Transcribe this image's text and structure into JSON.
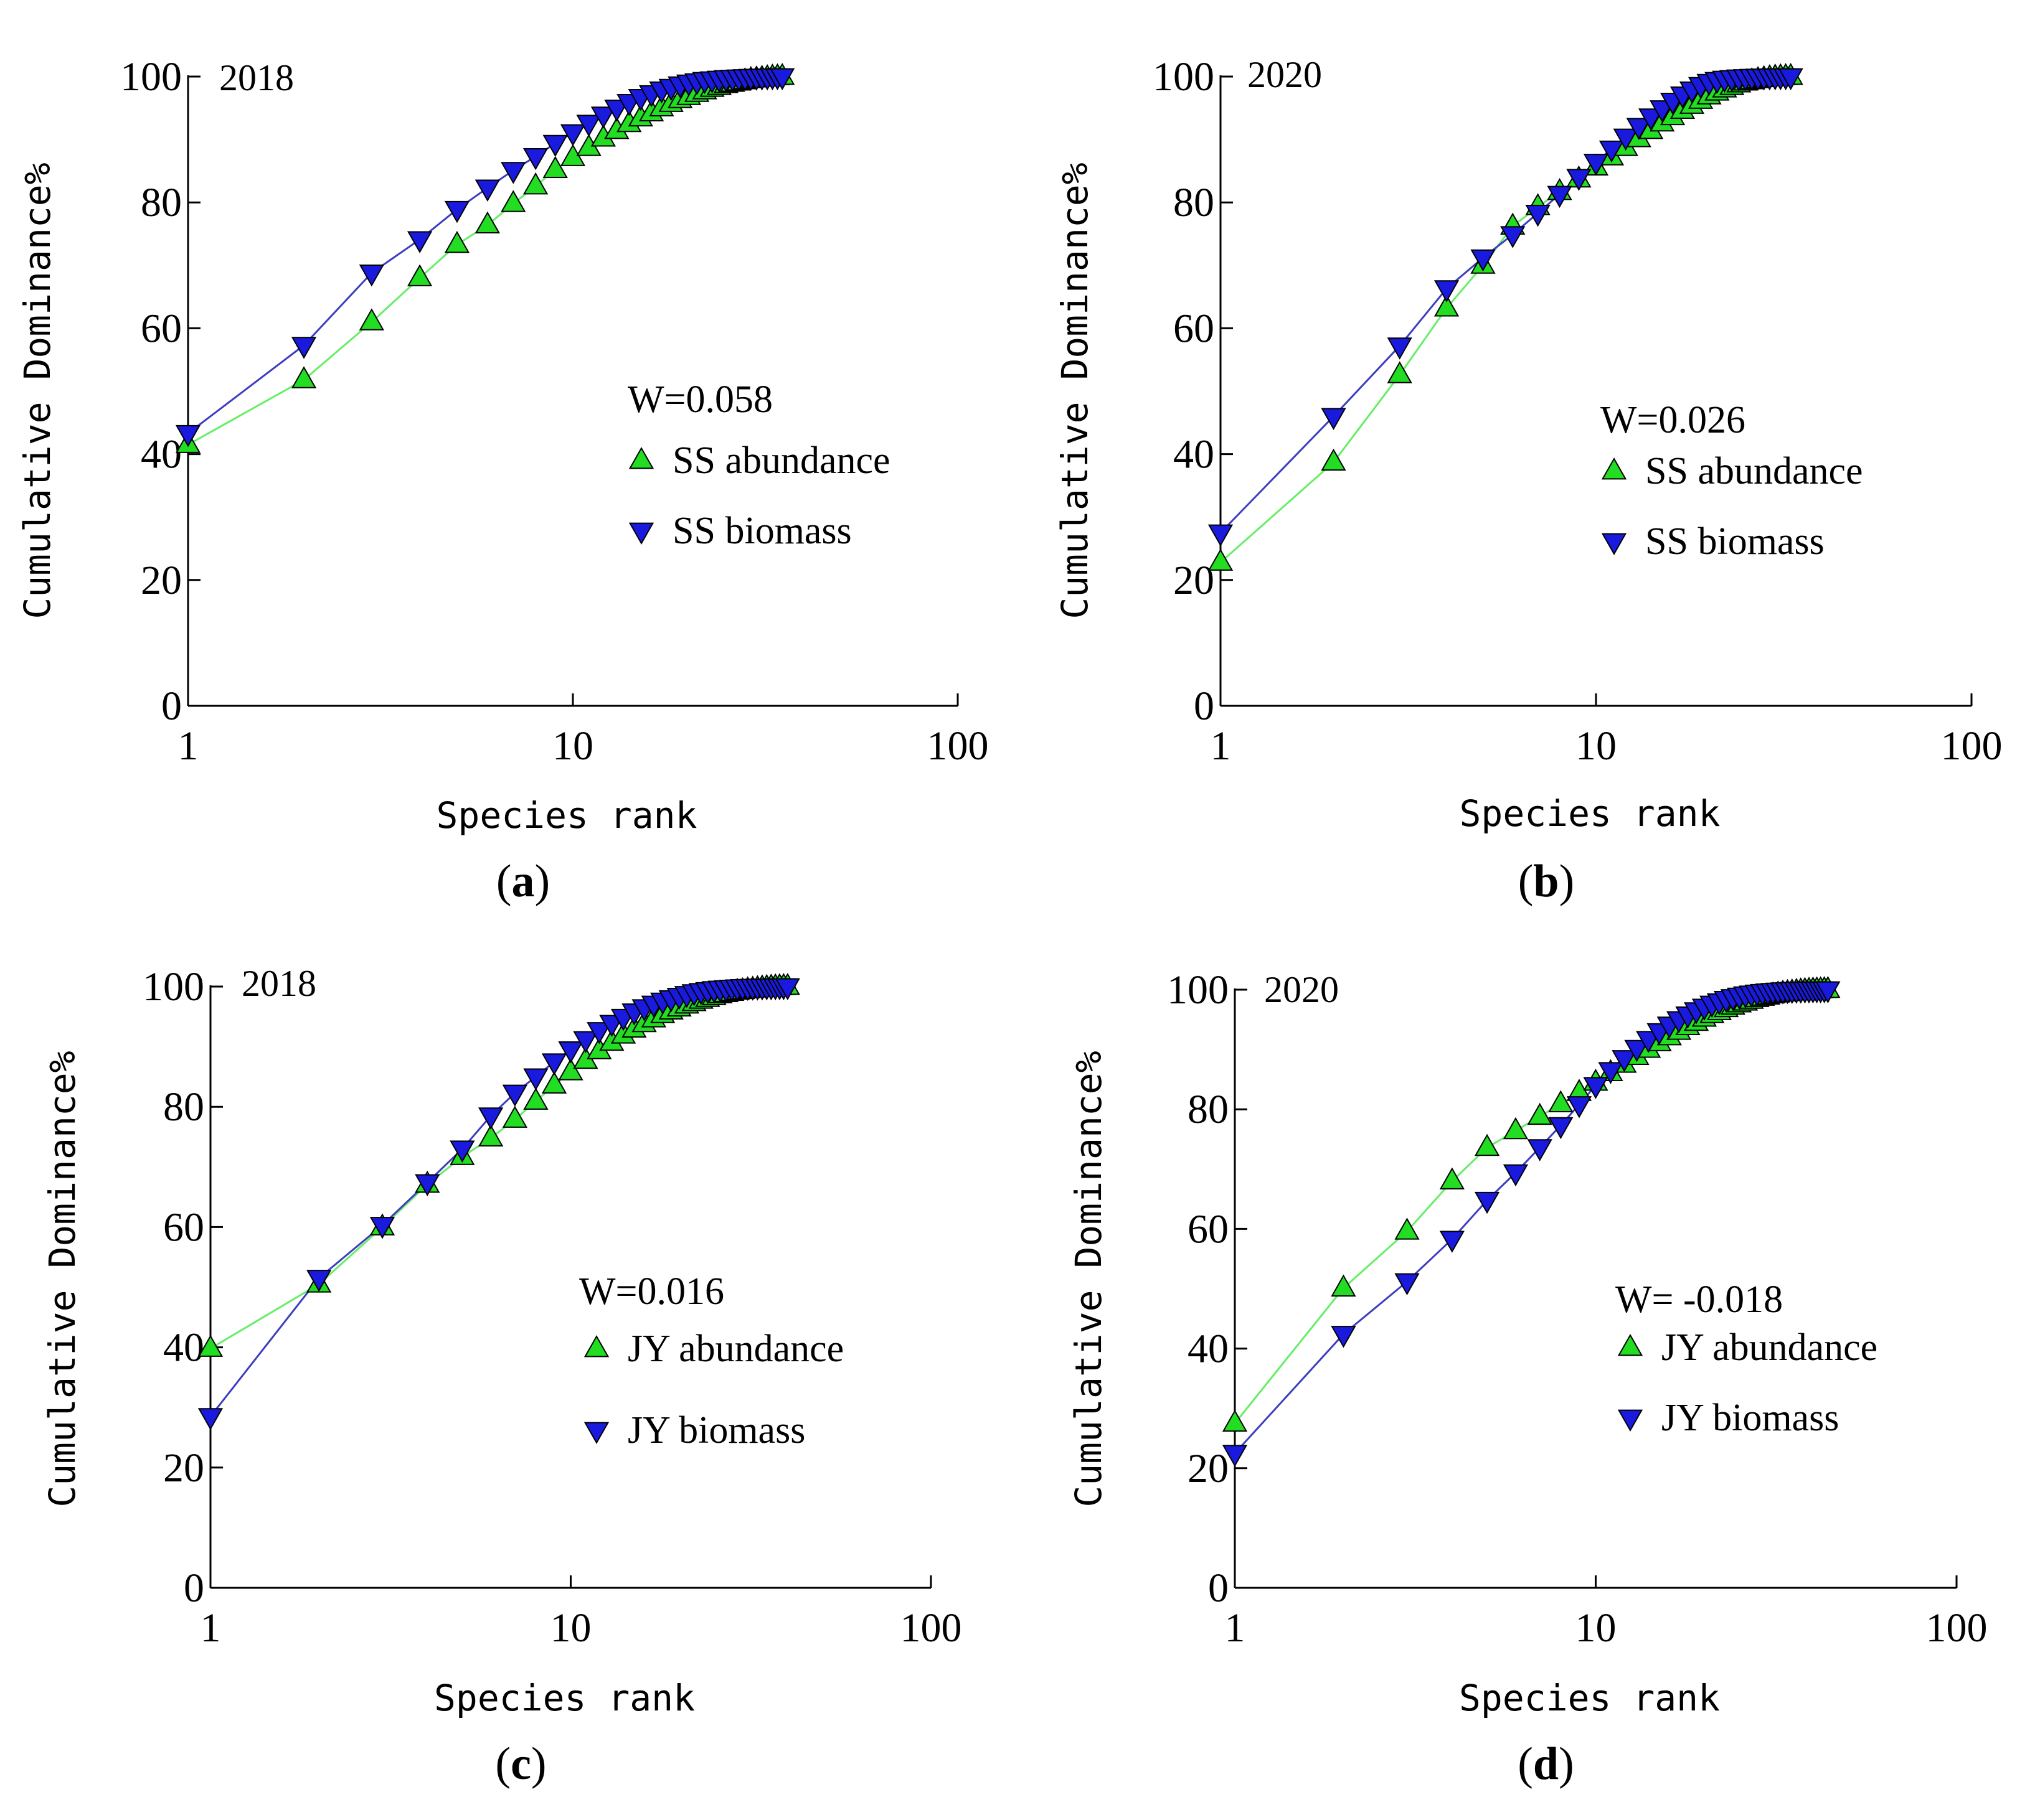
{
  "colors": {
    "abundance_fill": "#22dd22",
    "abundance_line": "#66ee66",
    "biomass_fill": "#1a1adf",
    "biomass_line": "#3d3dc0",
    "axis": "#000000"
  },
  "chart_data": [
    {
      "id": "a",
      "type": "line",
      "caption_letter": "a",
      "year": "2018",
      "annotation": "W=0.058",
      "xlabel": "Species rank",
      "ylabel": "Cumulative Dominance%",
      "xscale": "log",
      "xlim": [
        1,
        100
      ],
      "ylim": [
        0,
        100
      ],
      "x_ticks": [
        "1",
        "10",
        "100"
      ],
      "y_ticks": [
        "0",
        "20",
        "40",
        "60",
        "80",
        "100"
      ],
      "legend_position": "center-right",
      "series": [
        {
          "name": "SS abundance",
          "marker": "triangle-up",
          "x": [
            1,
            2,
            3,
            4,
            5,
            6,
            7,
            8,
            9,
            10,
            11,
            12,
            13,
            14,
            15,
            16,
            17,
            18,
            19,
            20,
            21,
            22,
            23,
            24,
            25,
            26,
            27,
            28,
            29,
            30,
            31,
            32,
            33,
            34,
            35
          ],
          "values": [
            41.5,
            51.8,
            61,
            68,
            73.3,
            76.4,
            79.8,
            82.6,
            85.2,
            87.1,
            88.7,
            90.2,
            91.4,
            92.5,
            93.4,
            94.2,
            95,
            95.7,
            96.3,
            96.8,
            97.3,
            97.7,
            98.1,
            98.4,
            98.7,
            98.9,
            99.1,
            99.3,
            99.5,
            99.6,
            99.7,
            99.8,
            99.9,
            99.95,
            100
          ]
        },
        {
          "name": "SS biomass",
          "marker": "triangle-down",
          "x": [
            1,
            2,
            3,
            4,
            5,
            6,
            7,
            8,
            9,
            10,
            11,
            12,
            13,
            14,
            15,
            16,
            17,
            18,
            19,
            20,
            21,
            22,
            23,
            24,
            25,
            26,
            27,
            28,
            29,
            30,
            31,
            32,
            33,
            34,
            35
          ],
          "values": [
            43.3,
            57.3,
            68.8,
            74.1,
            78.9,
            82.3,
            85.1,
            87.3,
            89.4,
            91.1,
            92.6,
            93.9,
            95,
            95.9,
            96.7,
            97.3,
            97.9,
            98.3,
            98.7,
            99,
            99.2,
            99.4,
            99.5,
            99.6,
            99.7,
            99.75,
            99.8,
            99.85,
            99.9,
            99.92,
            99.94,
            99.96,
            99.98,
            99.99,
            100
          ]
        }
      ]
    },
    {
      "id": "b",
      "type": "line",
      "caption_letter": "b",
      "year": "2020",
      "annotation": "W=0.026",
      "xlabel": "Species rank",
      "ylabel": "Cumulative Dominance%",
      "xscale": "log",
      "xlim": [
        1,
        100
      ],
      "ylim": [
        0,
        100
      ],
      "x_ticks": [
        "1",
        "10",
        "100"
      ],
      "y_ticks": [
        "0",
        "20",
        "40",
        "60",
        "80",
        "100"
      ],
      "legend_position": "center-right",
      "series": [
        {
          "name": "SS abundance",
          "marker": "triangle-up",
          "x": [
            1,
            2,
            3,
            4,
            5,
            6,
            7,
            8,
            9,
            10,
            11,
            12,
            13,
            14,
            15,
            16,
            17,
            18,
            19,
            20,
            21,
            22,
            23,
            24,
            25,
            26,
            27,
            28,
            29,
            30,
            31,
            32,
            33
          ],
          "values": [
            22.8,
            38.7,
            52.6,
            63.2,
            70,
            76.2,
            79.3,
            81.7,
            83.7,
            85.6,
            87.2,
            88.7,
            90.1,
            91.4,
            92.6,
            93.6,
            94.6,
            95.4,
            96.2,
            96.9,
            97.5,
            98,
            98.4,
            98.8,
            99.1,
            99.3,
            99.5,
            99.65,
            99.8,
            99.9,
            99.95,
            99.98,
            100
          ]
        },
        {
          "name": "SS biomass",
          "marker": "triangle-down",
          "x": [
            1,
            2,
            3,
            4,
            5,
            6,
            7,
            8,
            9,
            10,
            11,
            12,
            13,
            14,
            15,
            16,
            17,
            18,
            19,
            20,
            21,
            22,
            23,
            24,
            25,
            26,
            27,
            28,
            29,
            30,
            31,
            32,
            33
          ],
          "values": [
            27.5,
            46,
            57.2,
            66.3,
            71.2,
            74.9,
            78.3,
            81.3,
            84,
            86.4,
            88.5,
            90.4,
            92.1,
            93.6,
            94.9,
            96.1,
            97.1,
            97.9,
            98.6,
            99.1,
            99.4,
            99.6,
            99.7,
            99.8,
            99.85,
            99.9,
            99.93,
            99.95,
            99.97,
            99.98,
            99.99,
            99.995,
            100
          ]
        }
      ]
    },
    {
      "id": "c",
      "type": "line",
      "caption_letter": "c",
      "year": "2018",
      "annotation": "W=0.016",
      "xlabel": "Species rank",
      "ylabel": "Cumulative Dominance%",
      "xscale": "log",
      "xlim": [
        1,
        100
      ],
      "ylim": [
        0,
        100
      ],
      "x_ticks": [
        "1",
        "10",
        "100"
      ],
      "y_ticks": [
        "0",
        "20",
        "40",
        "60",
        "80",
        "100"
      ],
      "legend_position": "center-right",
      "series": [
        {
          "name": "JY abundance",
          "marker": "triangle-up",
          "x": [
            1,
            2,
            3,
            4,
            5,
            6,
            7,
            8,
            9,
            10,
            11,
            12,
            13,
            14,
            15,
            16,
            17,
            18,
            19,
            20,
            21,
            22,
            23,
            24,
            25,
            26,
            27,
            28,
            29,
            30,
            31,
            32,
            33,
            34,
            35,
            36,
            37,
            38,
            39,
            40
          ],
          "values": [
            39.8,
            50.5,
            60,
            67.1,
            71.7,
            74.8,
            77.9,
            80.9,
            83.6,
            85.8,
            87.7,
            89.3,
            90.7,
            91.9,
            92.9,
            93.8,
            94.6,
            95.3,
            95.9,
            96.4,
            96.9,
            97.3,
            97.7,
            98,
            98.3,
            98.6,
            98.8,
            99,
            99.2,
            99.3,
            99.45,
            99.55,
            99.65,
            99.75,
            99.82,
            99.88,
            99.93,
            99.96,
            99.98,
            100
          ]
        },
        {
          "name": "JY biomass",
          "marker": "triangle-down",
          "x": [
            1,
            2,
            3,
            4,
            5,
            6,
            7,
            8,
            9,
            10,
            11,
            12,
            13,
            14,
            15,
            16,
            17,
            18,
            19,
            20,
            21,
            22,
            23,
            24,
            25,
            26,
            27,
            28,
            29,
            30,
            31,
            32,
            33,
            34,
            35,
            36,
            37,
            38,
            39,
            40
          ],
          "values": [
            28.5,
            51.5,
            60.3,
            67.4,
            73,
            78.5,
            82.3,
            85,
            87.5,
            89.5,
            91.2,
            92.7,
            93.9,
            94.9,
            95.8,
            96.5,
            97.1,
            97.6,
            98,
            98.4,
            98.7,
            99,
            99.2,
            99.35,
            99.5,
            99.6,
            99.68,
            99.75,
            99.8,
            99.85,
            99.88,
            99.91,
            99.93,
            99.95,
            99.96,
            99.97,
            99.98,
            99.99,
            99.995,
            100
          ]
        }
      ]
    },
    {
      "id": "d",
      "type": "line",
      "caption_letter": "d",
      "year": "2020",
      "annotation": "W= -0.018",
      "xlabel": "Species rank",
      "ylabel": "Cumulative Dominance%",
      "xscale": "log",
      "xlim": [
        1,
        100
      ],
      "ylim": [
        0,
        100
      ],
      "x_ticks": [
        "1",
        "10",
        "100"
      ],
      "y_ticks": [
        "0",
        "20",
        "40",
        "60",
        "80",
        "100"
      ],
      "legend_position": "center-right",
      "series": [
        {
          "name": "JY abundance",
          "marker": "triangle-up",
          "x": [
            1,
            2,
            3,
            4,
            5,
            6,
            7,
            8,
            9,
            10,
            11,
            12,
            13,
            14,
            15,
            16,
            17,
            18,
            19,
            20,
            21,
            22,
            23,
            24,
            25,
            26,
            27,
            28,
            29,
            30,
            31,
            32,
            33,
            34,
            35,
            36,
            37,
            38,
            39,
            40,
            41,
            42,
            43,
            44
          ],
          "values": [
            27.5,
            50.1,
            59.6,
            68,
            73.6,
            76.4,
            78.8,
            80.9,
            82.8,
            84.5,
            86.1,
            87.5,
            88.8,
            90,
            91.1,
            92.1,
            93,
            93.8,
            94.5,
            95.2,
            95.8,
            96.3,
            96.8,
            97.2,
            97.6,
            97.9,
            98.2,
            98.5,
            98.7,
            98.9,
            99.1,
            99.25,
            99.4,
            99.5,
            99.6,
            99.7,
            99.77,
            99.83,
            99.88,
            99.92,
            99.95,
            99.97,
            99.99,
            100
          ]
        },
        {
          "name": "JY biomass",
          "marker": "triangle-down",
          "x": [
            1,
            2,
            3,
            4,
            5,
            6,
            7,
            8,
            9,
            10,
            11,
            12,
            13,
            14,
            15,
            16,
            17,
            18,
            19,
            20,
            21,
            22,
            23,
            24,
            25,
            26,
            27,
            28,
            29,
            30,
            31,
            32,
            33,
            34,
            35,
            36,
            37,
            38,
            39,
            40,
            41,
            42,
            43,
            44
          ],
          "values": [
            22.5,
            42.4,
            51.2,
            58.3,
            64.8,
            69.4,
            73.6,
            77.3,
            80.8,
            84,
            86.5,
            88.5,
            90.2,
            91.7,
            93,
            94.1,
            95,
            95.8,
            96.5,
            97.1,
            97.6,
            98,
            98.4,
            98.7,
            98.95,
            99.15,
            99.3,
            99.45,
            99.55,
            99.65,
            99.72,
            99.78,
            99.83,
            99.87,
            99.9,
            99.93,
            99.95,
            99.96,
            99.97,
            99.98,
            99.99,
            99.995,
            99.998,
            100
          ]
        }
      ]
    }
  ]
}
